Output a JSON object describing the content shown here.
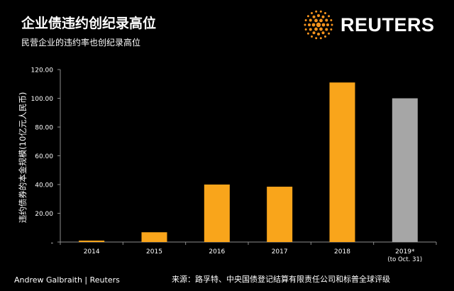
{
  "header": {
    "title": "企业债违约创纪录高位",
    "subtitle": "民营企业的违约率也创纪录高位"
  },
  "brand": {
    "wordmark": "REUTERS",
    "logo_icon": "reuters-dot-logo-icon",
    "logo_color": "#F7941D"
  },
  "footer": {
    "credit": "Andrew Galbraith | Reuters",
    "source": "来源：路孚特、中央国债登记结算有限责任公司和标普全球评级"
  },
  "chart_data": {
    "type": "bar",
    "ylabel": "违约债券的本金规模(10亿元人民币)",
    "categories": [
      "2014",
      "2015",
      "2016",
      "2017",
      "2018",
      "2019*\n(to Oct. 31)"
    ],
    "values": [
      1.0,
      6.8,
      40.0,
      38.5,
      111.0,
      100.0
    ],
    "bar_colors": [
      "#F9A51B",
      "#F9A51B",
      "#F9A51B",
      "#F9A51B",
      "#F9A51B",
      "#A6A6A6"
    ],
    "ylim": [
      0,
      120
    ],
    "ytick_labels": [
      "-",
      "20.00",
      "40.00",
      "60.00",
      "80.00",
      "100.00",
      "120.00"
    ],
    "grid": false
  }
}
